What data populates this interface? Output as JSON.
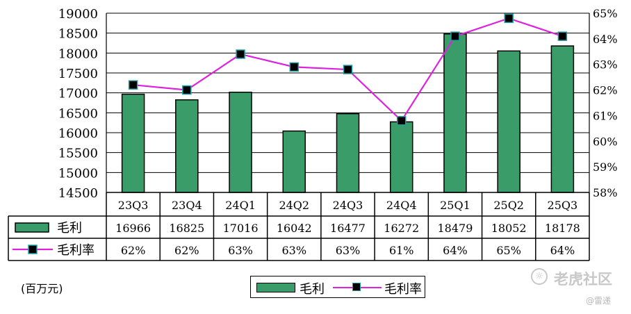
{
  "chart_data": {
    "type": "bar",
    "categories": [
      "23Q3",
      "23Q4",
      "24Q1",
      "24Q2",
      "24Q3",
      "24Q4",
      "25Q1",
      "25Q2",
      "25Q3"
    ],
    "series": [
      {
        "name": "毛利",
        "type": "bar",
        "axis": "left",
        "values": [
          16966,
          16825,
          17016,
          16042,
          16477,
          16272,
          18479,
          18052,
          18178
        ],
        "color": "#3a9c68"
      },
      {
        "name": "毛利率",
        "type": "line",
        "axis": "right",
        "values": [
          62.2,
          62.0,
          63.4,
          62.9,
          62.8,
          60.8,
          64.1,
          64.8,
          64.1
        ],
        "table_labels": [
          "62%",
          "62%",
          "63%",
          "63%",
          "63%",
          "61%",
          "64%",
          "65%",
          "64%"
        ],
        "color": "#dd22dd",
        "marker_color": "#000000",
        "marker_edge": "#1fa0a8"
      }
    ],
    "y_left": {
      "lim": [
        14500,
        19000
      ],
      "ticks": [
        "14500",
        "15000",
        "15500",
        "16000",
        "16500",
        "17000",
        "17500",
        "18000",
        "18500",
        "19000"
      ]
    },
    "y_right": {
      "lim": [
        58,
        65
      ],
      "ticks": [
        "58%",
        "59%",
        "60%",
        "61%",
        "62%",
        "63%",
        "64%",
        "65%"
      ]
    },
    "grid": true,
    "data_table": true,
    "unit_label": "(百万元)",
    "legend": {
      "position": "bottom-center",
      "items": [
        "毛利",
        "毛利率"
      ]
    }
  },
  "watermark": {
    "text": "老虎社区",
    "sub": "@雷递"
  }
}
